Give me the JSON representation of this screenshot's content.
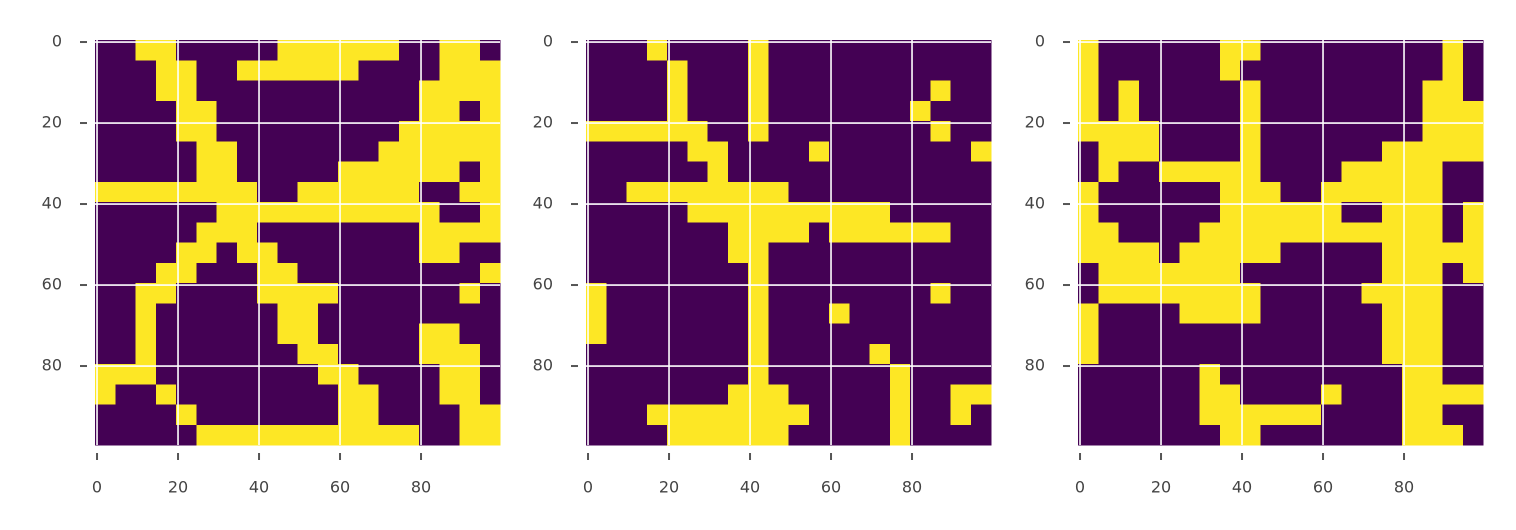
{
  "chart_data": [
    {
      "type": "image",
      "colors": [
        "#440154",
        "#fde725"
      ],
      "grid": true,
      "xlim": [
        -0.5,
        99.5
      ],
      "ylim": [
        99.5,
        -0.5
      ],
      "xticks": [
        0,
        20,
        40,
        60,
        80
      ],
      "yticks": [
        0,
        20,
        40,
        60,
        80
      ],
      "values": [
        [
          0,
          0,
          1,
          1,
          0,
          0,
          0,
          0,
          0,
          1,
          1,
          1,
          1,
          1,
          1,
          0,
          0,
          1,
          1,
          0
        ],
        [
          0,
          0,
          0,
          1,
          1,
          0,
          0,
          1,
          1,
          1,
          1,
          1,
          1,
          0,
          0,
          0,
          0,
          1,
          1,
          1
        ],
        [
          0,
          0,
          0,
          1,
          1,
          0,
          0,
          0,
          0,
          0,
          0,
          0,
          0,
          0,
          0,
          0,
          1,
          1,
          1,
          1
        ],
        [
          0,
          0,
          0,
          0,
          1,
          1,
          0,
          0,
          0,
          0,
          0,
          0,
          0,
          0,
          0,
          0,
          1,
          1,
          0,
          1
        ],
        [
          0,
          0,
          0,
          0,
          1,
          1,
          0,
          0,
          0,
          0,
          0,
          0,
          0,
          0,
          0,
          1,
          1,
          1,
          1,
          1
        ],
        [
          0,
          0,
          0,
          0,
          0,
          1,
          1,
          0,
          0,
          0,
          0,
          0,
          0,
          0,
          1,
          1,
          1,
          1,
          1,
          1
        ],
        [
          0,
          0,
          0,
          0,
          0,
          1,
          1,
          0,
          0,
          0,
          0,
          0,
          1,
          1,
          1,
          1,
          1,
          1,
          0,
          1
        ],
        [
          1,
          1,
          1,
          1,
          1,
          1,
          1,
          1,
          0,
          0,
          1,
          1,
          1,
          1,
          1,
          1,
          0,
          0,
          1,
          1
        ],
        [
          0,
          0,
          0,
          0,
          0,
          0,
          1,
          1,
          1,
          1,
          1,
          1,
          1,
          1,
          1,
          1,
          1,
          0,
          0,
          1
        ],
        [
          0,
          0,
          0,
          0,
          0,
          1,
          1,
          1,
          0,
          0,
          0,
          0,
          0,
          0,
          0,
          0,
          1,
          1,
          1,
          1
        ],
        [
          0,
          0,
          0,
          0,
          1,
          1,
          0,
          1,
          1,
          0,
          0,
          0,
          0,
          0,
          0,
          0,
          1,
          1,
          0,
          0
        ],
        [
          0,
          0,
          0,
          1,
          1,
          0,
          0,
          0,
          1,
          1,
          0,
          0,
          0,
          0,
          0,
          0,
          0,
          0,
          0,
          1
        ],
        [
          0,
          0,
          1,
          1,
          0,
          0,
          0,
          0,
          1,
          1,
          1,
          1,
          0,
          0,
          0,
          0,
          0,
          0,
          1,
          0
        ],
        [
          0,
          0,
          1,
          0,
          0,
          0,
          0,
          0,
          0,
          1,
          1,
          0,
          0,
          0,
          0,
          0,
          0,
          0,
          0,
          0
        ],
        [
          0,
          0,
          1,
          0,
          0,
          0,
          0,
          0,
          0,
          1,
          1,
          0,
          0,
          0,
          0,
          0,
          1,
          1,
          0,
          0
        ],
        [
          0,
          0,
          1,
          0,
          0,
          0,
          0,
          0,
          0,
          0,
          1,
          1,
          0,
          0,
          0,
          0,
          1,
          1,
          1,
          0
        ],
        [
          1,
          1,
          1,
          0,
          0,
          0,
          0,
          0,
          0,
          0,
          0,
          1,
          1,
          0,
          0,
          0,
          0,
          1,
          1,
          0
        ],
        [
          1,
          0,
          0,
          1,
          0,
          0,
          0,
          0,
          0,
          0,
          0,
          0,
          1,
          1,
          0,
          0,
          0,
          1,
          1,
          0
        ],
        [
          0,
          0,
          0,
          0,
          1,
          0,
          0,
          0,
          0,
          0,
          0,
          0,
          1,
          1,
          0,
          0,
          0,
          0,
          1,
          1
        ],
        [
          0,
          0,
          0,
          0,
          0,
          1,
          1,
          1,
          1,
          1,
          1,
          1,
          1,
          1,
          1,
          1,
          0,
          0,
          1,
          1
        ]
      ]
    },
    {
      "type": "image",
      "colors": [
        "#440154",
        "#fde725"
      ],
      "grid": true,
      "xlim": [
        -0.5,
        99.5
      ],
      "ylim": [
        99.5,
        -0.5
      ],
      "xticks": [
        0,
        20,
        40,
        60,
        80
      ],
      "yticks": [
        0,
        20,
        40,
        60,
        80
      ],
      "values": [
        [
          0,
          0,
          0,
          1,
          0,
          0,
          0,
          0,
          1,
          0,
          0,
          0,
          0,
          0,
          0,
          0,
          0,
          0,
          0,
          0
        ],
        [
          0,
          0,
          0,
          0,
          1,
          0,
          0,
          0,
          1,
          0,
          0,
          0,
          0,
          0,
          0,
          0,
          0,
          0,
          0,
          0
        ],
        [
          0,
          0,
          0,
          0,
          1,
          0,
          0,
          0,
          1,
          0,
          0,
          0,
          0,
          0,
          0,
          0,
          0,
          1,
          0,
          0
        ],
        [
          0,
          0,
          0,
          0,
          1,
          0,
          0,
          0,
          1,
          0,
          0,
          0,
          0,
          0,
          0,
          0,
          1,
          0,
          0,
          0
        ],
        [
          1,
          1,
          1,
          1,
          1,
          1,
          0,
          0,
          1,
          0,
          0,
          0,
          0,
          0,
          0,
          0,
          0,
          1,
          0,
          0
        ],
        [
          0,
          0,
          0,
          0,
          0,
          1,
          1,
          0,
          0,
          0,
          0,
          1,
          0,
          0,
          0,
          0,
          0,
          0,
          0,
          1
        ],
        [
          0,
          0,
          0,
          0,
          0,
          0,
          1,
          0,
          0,
          0,
          0,
          0,
          0,
          0,
          0,
          0,
          0,
          0,
          0,
          0
        ],
        [
          0,
          0,
          1,
          1,
          1,
          1,
          1,
          1,
          1,
          1,
          0,
          0,
          0,
          0,
          0,
          0,
          0,
          0,
          0,
          0
        ],
        [
          0,
          0,
          0,
          0,
          0,
          1,
          1,
          1,
          1,
          1,
          1,
          1,
          1,
          1,
          1,
          0,
          0,
          0,
          0,
          0
        ],
        [
          0,
          0,
          0,
          0,
          0,
          0,
          0,
          1,
          1,
          1,
          1,
          0,
          1,
          1,
          1,
          1,
          1,
          1,
          0,
          0
        ],
        [
          0,
          0,
          0,
          0,
          0,
          0,
          0,
          1,
          1,
          0,
          0,
          0,
          0,
          0,
          0,
          0,
          0,
          0,
          0,
          0
        ],
        [
          0,
          0,
          0,
          0,
          0,
          0,
          0,
          0,
          1,
          0,
          0,
          0,
          0,
          0,
          0,
          0,
          0,
          0,
          0,
          0
        ],
        [
          1,
          0,
          0,
          0,
          0,
          0,
          0,
          0,
          1,
          0,
          0,
          0,
          0,
          0,
          0,
          0,
          0,
          1,
          0,
          0
        ],
        [
          1,
          0,
          0,
          0,
          0,
          0,
          0,
          0,
          1,
          0,
          0,
          0,
          1,
          0,
          0,
          0,
          0,
          0,
          0,
          0
        ],
        [
          1,
          0,
          0,
          0,
          0,
          0,
          0,
          0,
          1,
          0,
          0,
          0,
          0,
          0,
          0,
          0,
          0,
          0,
          0,
          0
        ],
        [
          0,
          0,
          0,
          0,
          0,
          0,
          0,
          0,
          1,
          0,
          0,
          0,
          0,
          0,
          1,
          0,
          0,
          0,
          0,
          0
        ],
        [
          0,
          0,
          0,
          0,
          0,
          0,
          0,
          0,
          1,
          0,
          0,
          0,
          0,
          0,
          0,
          1,
          0,
          0,
          0,
          0
        ],
        [
          0,
          0,
          0,
          0,
          0,
          0,
          0,
          1,
          1,
          1,
          0,
          0,
          0,
          0,
          0,
          1,
          0,
          0,
          1,
          1
        ],
        [
          0,
          0,
          0,
          1,
          1,
          1,
          1,
          1,
          1,
          1,
          1,
          0,
          0,
          0,
          0,
          1,
          0,
          0,
          1,
          0
        ],
        [
          0,
          0,
          0,
          0,
          1,
          1,
          1,
          1,
          1,
          1,
          0,
          0,
          0,
          0,
          0,
          1,
          0,
          0,
          0,
          0
        ]
      ]
    },
    {
      "type": "image",
      "colors": [
        "#440154",
        "#fde725"
      ],
      "grid": true,
      "xlim": [
        -0.5,
        99.5
      ],
      "ylim": [
        99.5,
        -0.5
      ],
      "xticks": [
        0,
        20,
        40,
        60,
        80
      ],
      "yticks": [
        0,
        20,
        40,
        60,
        80
      ],
      "values": [
        [
          1,
          0,
          0,
          0,
          0,
          0,
          0,
          1,
          1,
          0,
          0,
          0,
          0,
          0,
          0,
          0,
          0,
          0,
          1,
          0
        ],
        [
          1,
          0,
          0,
          0,
          0,
          0,
          0,
          1,
          0,
          0,
          0,
          0,
          0,
          0,
          0,
          0,
          0,
          0,
          1,
          0
        ],
        [
          1,
          0,
          1,
          0,
          0,
          0,
          0,
          0,
          1,
          0,
          0,
          0,
          0,
          0,
          0,
          0,
          0,
          1,
          1,
          0
        ],
        [
          1,
          0,
          1,
          0,
          0,
          0,
          0,
          0,
          1,
          0,
          0,
          0,
          0,
          0,
          0,
          0,
          0,
          1,
          1,
          1
        ],
        [
          1,
          1,
          1,
          1,
          0,
          0,
          0,
          0,
          1,
          0,
          0,
          0,
          0,
          0,
          0,
          0,
          0,
          1,
          1,
          1
        ],
        [
          0,
          1,
          1,
          1,
          0,
          0,
          0,
          0,
          1,
          0,
          0,
          0,
          0,
          0,
          0,
          1,
          1,
          1,
          1,
          1
        ],
        [
          0,
          1,
          0,
          0,
          1,
          1,
          1,
          1,
          1,
          0,
          0,
          0,
          0,
          1,
          1,
          1,
          1,
          1,
          0,
          0
        ],
        [
          1,
          0,
          0,
          0,
          0,
          0,
          0,
          1,
          1,
          1,
          0,
          0,
          1,
          1,
          1,
          1,
          1,
          1,
          0,
          0
        ],
        [
          1,
          0,
          0,
          0,
          0,
          0,
          0,
          1,
          1,
          1,
          1,
          1,
          1,
          0,
          0,
          1,
          1,
          1,
          0,
          1
        ],
        [
          1,
          1,
          0,
          0,
          0,
          0,
          1,
          1,
          1,
          1,
          1,
          1,
          1,
          1,
          1,
          1,
          1,
          1,
          0,
          1
        ],
        [
          1,
          1,
          1,
          1,
          0,
          1,
          1,
          1,
          1,
          1,
          0,
          0,
          0,
          0,
          0,
          1,
          1,
          1,
          1,
          1
        ],
        [
          0,
          1,
          1,
          1,
          1,
          1,
          1,
          1,
          0,
          0,
          0,
          0,
          0,
          0,
          0,
          1,
          1,
          1,
          0,
          1
        ],
        [
          0,
          1,
          1,
          1,
          1,
          1,
          1,
          1,
          1,
          0,
          0,
          0,
          0,
          0,
          1,
          1,
          1,
          1,
          0,
          0
        ],
        [
          1,
          0,
          0,
          0,
          0,
          1,
          1,
          1,
          1,
          0,
          0,
          0,
          0,
          0,
          0,
          1,
          1,
          1,
          0,
          0
        ],
        [
          1,
          0,
          0,
          0,
          0,
          0,
          0,
          0,
          0,
          0,
          0,
          0,
          0,
          0,
          0,
          1,
          1,
          1,
          0,
          0
        ],
        [
          1,
          0,
          0,
          0,
          0,
          0,
          0,
          0,
          0,
          0,
          0,
          0,
          0,
          0,
          0,
          1,
          1,
          1,
          0,
          0
        ],
        [
          0,
          0,
          0,
          0,
          0,
          0,
          1,
          0,
          0,
          0,
          0,
          0,
          0,
          0,
          0,
          0,
          1,
          1,
          0,
          0
        ],
        [
          0,
          0,
          0,
          0,
          0,
          0,
          1,
          1,
          0,
          0,
          0,
          0,
          1,
          0,
          0,
          0,
          1,
          1,
          1,
          1
        ],
        [
          0,
          0,
          0,
          0,
          0,
          0,
          1,
          1,
          1,
          1,
          1,
          1,
          0,
          0,
          0,
          0,
          1,
          1,
          0,
          0
        ],
        [
          0,
          0,
          0,
          0,
          0,
          0,
          0,
          1,
          1,
          0,
          0,
          0,
          0,
          0,
          0,
          0,
          1,
          1,
          1,
          0
        ]
      ]
    }
  ]
}
